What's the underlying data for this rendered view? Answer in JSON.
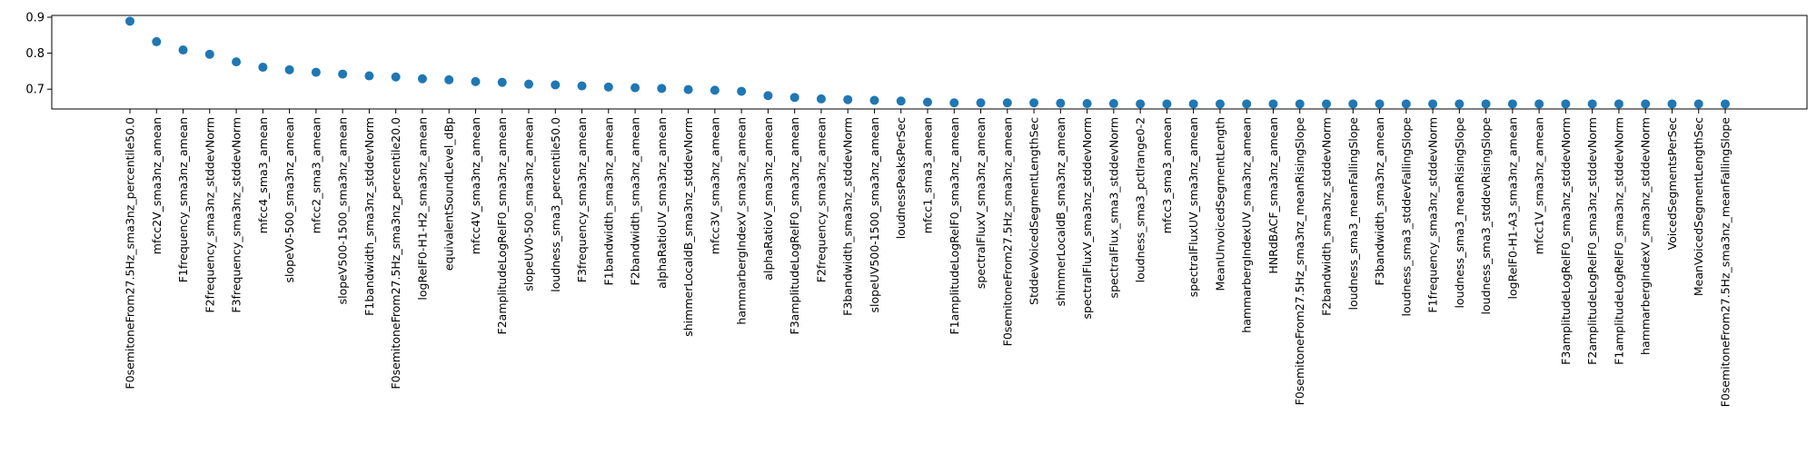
{
  "chart_data": {
    "type": "scatter",
    "title": "",
    "xlabel": "",
    "ylabel": "",
    "ylim": [
      0.645,
      0.905
    ],
    "yticks": [
      "0.7",
      "0.8",
      "0.9"
    ],
    "ytick_values": [
      0.7,
      0.8,
      0.9
    ],
    "grid": false,
    "legend": "none",
    "marker_color": "#1f77b4",
    "categories": [
      "F0semitoneFrom27.5Hz_sma3nz_percentile50.0",
      "mfcc2V_sma3nz_amean",
      "F1frequency_sma3nz_amean",
      "F2frequency_sma3nz_stddevNorm",
      "F3frequency_sma3nz_stddevNorm",
      "mfcc4_sma3_amean",
      "slopeV0-500_sma3nz_amean",
      "mfcc2_sma3_amean",
      "slopeV500-1500_sma3nz_amean",
      "F1bandwidth_sma3nz_stddevNorm",
      "F0semitoneFrom27.5Hz_sma3nz_percentile20.0",
      "logRelF0-H1-H2_sma3nz_amean",
      "equivalentSoundLevel_dBp",
      "mfcc4V_sma3nz_amean",
      "F2amplitudeLogRelF0_sma3nz_amean",
      "slopeUV0-500_sma3nz_amean",
      "loudness_sma3_percentile50.0",
      "F3frequency_sma3nz_amean",
      "F1bandwidth_sma3nz_amean",
      "F2bandwidth_sma3nz_amean",
      "alphaRatioUV_sma3nz_amean",
      "shimmerLocaldB_sma3nz_stddevNorm",
      "mfcc3V_sma3nz_amean",
      "hammarbergIndexV_sma3nz_amean",
      "alphaRatioV_sma3nz_amean",
      "F3amplitudeLogRelF0_sma3nz_amean",
      "F2frequency_sma3nz_amean",
      "F3bandwidth_sma3nz_stddevNorm",
      "slopeUV500-1500_sma3nz_amean",
      "loudnessPeaksPerSec",
      "mfcc1_sma3_amean",
      "F1amplitudeLogRelF0_sma3nz_amean",
      "spectralFluxV_sma3nz_amean",
      "F0semitoneFrom27.5Hz_sma3nz_amean",
      "StddevVoicedSegmentLengthSec",
      "shimmerLocaldB_sma3nz_amean",
      "spectralFluxV_sma3nz_stddevNorm",
      "spectralFlux_sma3_stddevNorm",
      "loudness_sma3_pctlrange0-2",
      "mfcc3_sma3_amean",
      "spectralFluxUV_sma3nz_amean",
      "MeanUnvoicedSegmentLength",
      "hammarbergIndexUV_sma3nz_amean",
      "HNRdBACF_sma3nz_amean",
      "F0semitoneFrom27.5Hz_sma3nz_meanRisingSlope",
      "F2bandwidth_sma3nz_stddevNorm",
      "loudness_sma3_meanFallingSlope",
      "F3bandwidth_sma3nz_amean",
      "loudness_sma3_stddevFallingSlope",
      "F1frequency_sma3nz_stddevNorm",
      "loudness_sma3_meanRisingSlope",
      "loudness_sma3_stddevRisingSlope",
      "logRelF0-H1-A3_sma3nz_amean",
      "mfcc1V_sma3nz_amean",
      "F3amplitudeLogRelF0_sma3nz_stddevNorm",
      "F2amplitudeLogRelF0_sma3nz_stddevNorm",
      "F1amplitudeLogRelF0_sma3nz_stddevNorm",
      "hammarbergIndexV_sma3nz_stddevNorm",
      "VoicedSegmentsPerSec",
      "MeanVoicedSegmentLengthSec",
      "F0semitoneFrom27.5Hz_sma3nz_meanFallingSlope"
    ],
    "values": [
      0.889,
      0.832,
      0.809,
      0.797,
      0.776,
      0.761,
      0.754,
      0.747,
      0.742,
      0.737,
      0.734,
      0.729,
      0.726,
      0.721,
      0.719,
      0.714,
      0.712,
      0.709,
      0.706,
      0.704,
      0.702,
      0.699,
      0.697,
      0.694,
      0.682,
      0.677,
      0.673,
      0.671,
      0.669,
      0.667,
      0.664,
      0.662,
      0.662,
      0.662,
      0.662,
      0.661,
      0.66,
      0.66,
      0.659,
      0.659,
      0.659,
      0.659,
      0.659,
      0.659,
      0.659,
      0.659,
      0.659,
      0.659,
      0.659,
      0.659,
      0.659,
      0.659,
      0.659,
      0.659,
      0.659,
      0.659,
      0.659,
      0.659,
      0.659,
      0.659,
      0.659
    ]
  }
}
